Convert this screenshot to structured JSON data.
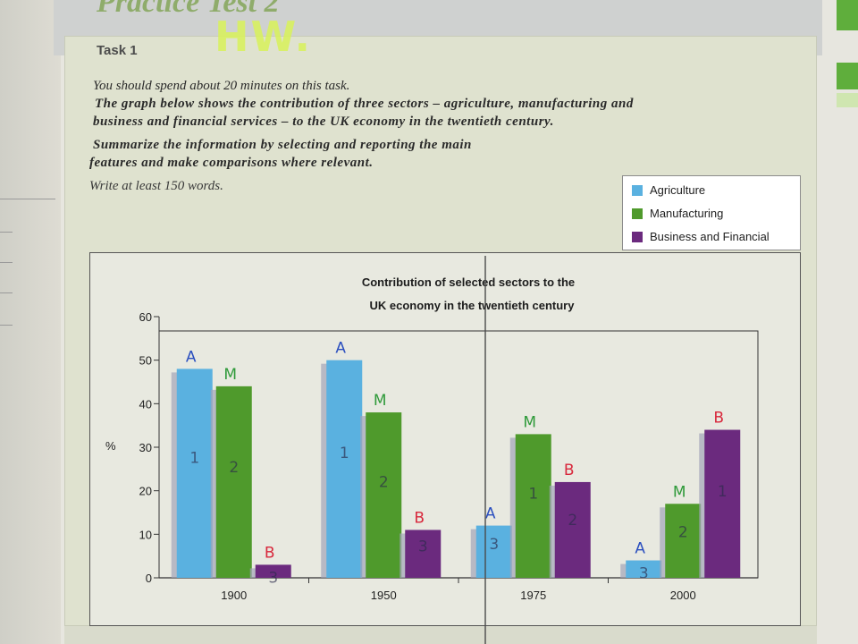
{
  "header": {
    "title": "Practice Test 2",
    "task_label": "Task 1",
    "handwriting": "HW."
  },
  "instructions": {
    "time": "You should spend about 20 minutes on this task.",
    "prompt_line1": "The graph below shows the contribution of three sectors – agriculture, manufacturing and",
    "prompt_line2": "business and financial services – to the UK economy in the twentieth century.",
    "summarize_line1": "Summarize the information by selecting and reporting the main",
    "summarize_line2": "features and make comparisons where relevant.",
    "words": "Write at least 150 words."
  },
  "legend": {
    "items": [
      {
        "label": "Agriculture",
        "color": "#5ab1e0"
      },
      {
        "label": "Manufacturing",
        "color": "#4f9a2c"
      },
      {
        "label": "Business and Financial",
        "color": "#6b2a7e"
      }
    ]
  },
  "chart_data": {
    "type": "bar",
    "title_line1": "Contribution of selected sectors to the",
    "title_line2": "UK economy in the twentieth century",
    "ylabel": "%",
    "ylim": [
      0,
      60
    ],
    "yticks": [
      0,
      10,
      20,
      30,
      40,
      50,
      60
    ],
    "categories": [
      "1900",
      "1950",
      "1975",
      "2000"
    ],
    "series": [
      {
        "name": "Agriculture",
        "color": "#5ab1e0",
        "values": [
          48,
          50,
          12,
          4
        ]
      },
      {
        "name": "Manufacturing",
        "color": "#4f9a2c",
        "values": [
          44,
          38,
          33,
          17
        ]
      },
      {
        "name": "Business and Financial",
        "color": "#6b2a7e",
        "values": [
          3,
          11,
          22,
          34
        ]
      }
    ],
    "legend_position": "top-right",
    "grid": false
  },
  "annotations": {
    "letters": [
      [
        "A",
        "M",
        "B"
      ],
      [
        "A",
        "M",
        "B"
      ],
      [
        "A",
        "M",
        "B"
      ],
      [
        "A",
        "M",
        "B"
      ]
    ],
    "ranks": [
      [
        "1",
        "2",
        "3"
      ],
      [
        "1",
        "2",
        "3"
      ],
      [
        "3",
        "1",
        "2"
      ],
      [
        "3",
        "2",
        "1"
      ]
    ],
    "letter_colors": [
      "#2b4fbf",
      "#2f9a3a",
      "#d8283c"
    ]
  }
}
